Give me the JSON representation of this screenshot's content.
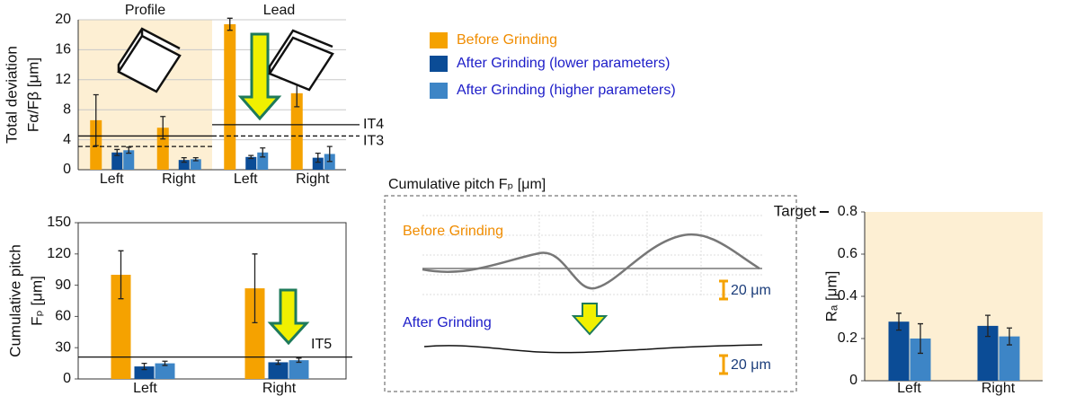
{
  "chart_data": [
    {
      "type": "bar",
      "ylabel": [
        "Total deviation",
        "Fα/Fβ [μm]"
      ],
      "groups": [
        "Profile",
        "Lead"
      ],
      "group_colors": [
        "#fdefd3",
        "#ffffff"
      ],
      "categories": [
        "Left",
        "Right",
        "Left",
        "Right"
      ],
      "series": [
        {
          "name": "Before Grinding",
          "color": "#f5a200",
          "values": [
            6.6,
            5.6,
            19.4,
            10.2
          ],
          "errors": [
            3.4,
            1.5,
            0.8,
            1.8
          ]
        },
        {
          "name": "After Grinding (lower parameters)",
          "color": "#0b4c96",
          "values": [
            2.3,
            1.3,
            1.7,
            1.6
          ],
          "errors": [
            0.4,
            0.3,
            0.2,
            0.6
          ]
        },
        {
          "name": "After Grinding (higher parameters)",
          "color": "#3d85c6",
          "values": [
            2.6,
            1.4,
            2.3,
            2.1
          ],
          "errors": [
            0.4,
            0.2,
            0.6,
            1.0
          ]
        }
      ],
      "ylim": [
        0,
        20
      ],
      "yticks": [
        0,
        4,
        8,
        12,
        16,
        20
      ],
      "grid": true,
      "frame": false,
      "reference_lines": [
        {
          "label": "IT4",
          "style": "solid",
          "values": [
            4.5,
            6
          ]
        },
        {
          "label": "IT3",
          "style": "dashed",
          "values": [
            3.1,
            4.5
          ]
        }
      ]
    },
    {
      "type": "bar",
      "ylabel": [
        "Cumulative pitch",
        "Fₚ [μm]"
      ],
      "categories": [
        "Left",
        "Right"
      ],
      "series": [
        {
          "color": "#f5a200",
          "values": [
            100,
            87
          ],
          "errors": [
            23,
            33
          ]
        },
        {
          "color": "#0b4c96",
          "values": [
            12,
            16
          ],
          "errors": [
            3,
            2
          ]
        },
        {
          "color": "#3d85c6",
          "values": [
            15,
            18
          ],
          "errors": [
            2,
            2
          ]
        }
      ],
      "ylim": [
        0,
        150
      ],
      "yticks": [
        0,
        30,
        60,
        90,
        120,
        150
      ],
      "grid": false,
      "frame": true,
      "reference_lines": [
        {
          "label": "IT5",
          "style": "solid",
          "values": [
            21
          ]
        }
      ]
    },
    {
      "type": "bar",
      "ylabel": [
        "Rₐ [μm]"
      ],
      "background": "#fdefd3",
      "categories": [
        "Left",
        "Right"
      ],
      "series": [
        {
          "color": "#0b4c96",
          "values": [
            0.28,
            0.26
          ],
          "errors": [
            0.04,
            0.05
          ]
        },
        {
          "color": "#3d85c6",
          "values": [
            0.2,
            0.21
          ],
          "errors": [
            0.07,
            0.04
          ]
        }
      ],
      "ylim": [
        0,
        0.8
      ],
      "yticks": [
        0,
        0.2,
        0.4,
        0.6,
        0.8
      ],
      "grid": false,
      "frame": false,
      "target": {
        "label": "Target",
        "value": 0.8
      }
    }
  ],
  "pitch_profile": {
    "title": "Cumulative pitch  Fₚ [μm]",
    "before_label": "Before Grinding",
    "after_label": "After Grinding",
    "scale_labels": [
      "20 μm",
      "20 μm"
    ]
  }
}
